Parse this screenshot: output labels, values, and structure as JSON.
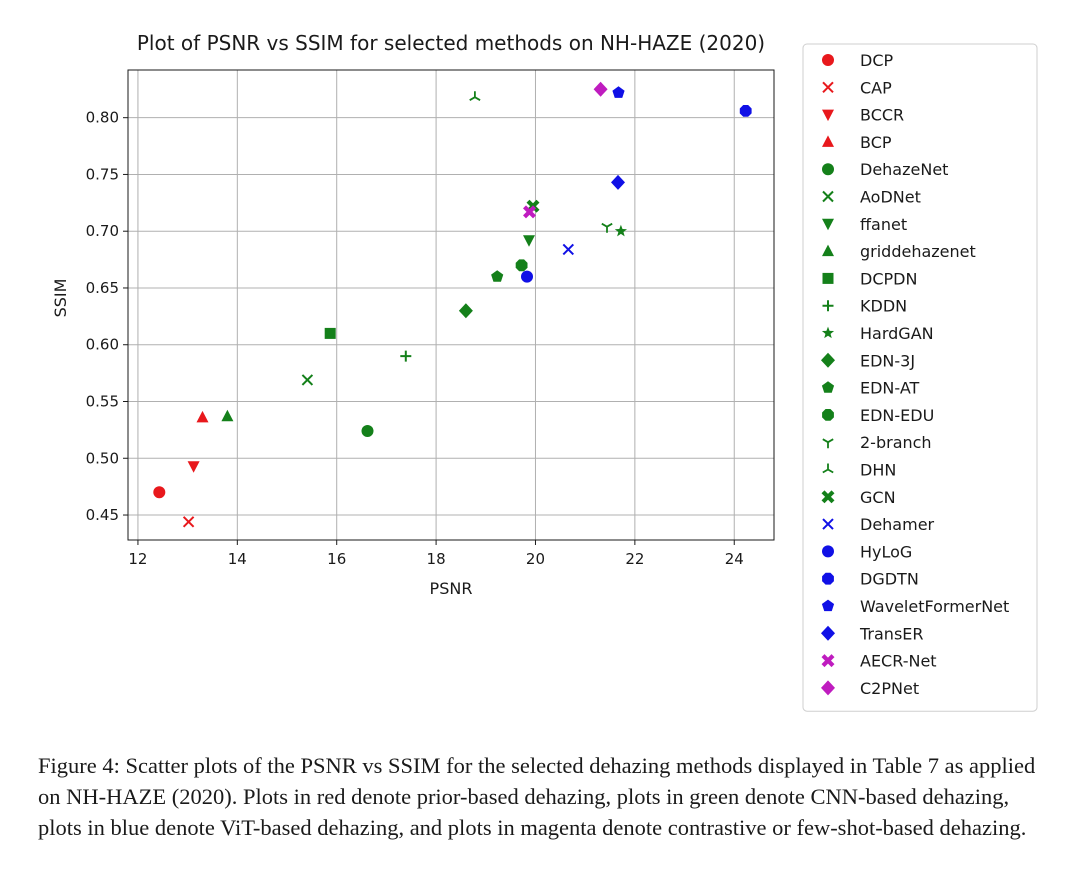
{
  "chart_data": {
    "type": "scatter",
    "title": "Plot of PSNR vs SSIM for selected methods on NH-HAZE (2020)",
    "xlabel": "PSNR",
    "ylabel": "SSIM",
    "xlim": [
      11.8,
      24.8
    ],
    "ylim": [
      0.428,
      0.842
    ],
    "xticks": [
      12,
      14,
      16,
      18,
      20,
      22,
      24
    ],
    "yticks": [
      0.45,
      0.5,
      0.55,
      0.6,
      0.65,
      0.7,
      0.75,
      0.8
    ],
    "grid": true,
    "legend_position": "outside-right",
    "colors": {
      "prior": "#e8181c",
      "cnn": "#14801a",
      "vit": "#1010e6",
      "contrastive": "#bf1cbf"
    },
    "series": [
      {
        "name": "DCP",
        "marker": "circle",
        "color": "#e8181c",
        "x": 12.43,
        "y": 0.47
      },
      {
        "name": "CAP",
        "marker": "x",
        "color": "#e8181c",
        "x": 13.02,
        "y": 0.444
      },
      {
        "name": "BCCR",
        "marker": "triangle-down",
        "color": "#e8181c",
        "x": 13.12,
        "y": 0.493
      },
      {
        "name": "BCP",
        "marker": "triangle-up",
        "color": "#e8181c",
        "x": 13.3,
        "y": 0.536
      },
      {
        "name": "DehazeNet",
        "marker": "circle",
        "color": "#14801a",
        "x": 16.62,
        "y": 0.524
      },
      {
        "name": "AoDNet",
        "marker": "x",
        "color": "#14801a",
        "x": 15.41,
        "y": 0.569
      },
      {
        "name": "ffanet",
        "marker": "triangle-down",
        "color": "#14801a",
        "x": 19.87,
        "y": 0.692
      },
      {
        "name": "griddehazenet",
        "marker": "triangle-up",
        "color": "#14801a",
        "x": 13.8,
        "y": 0.537
      },
      {
        "name": "DCPDN",
        "marker": "square",
        "color": "#14801a",
        "x": 15.87,
        "y": 0.61
      },
      {
        "name": "KDDN",
        "marker": "plus",
        "color": "#14801a",
        "x": 17.39,
        "y": 0.59
      },
      {
        "name": "HardGAN",
        "marker": "star",
        "color": "#14801a",
        "x": 21.72,
        "y": 0.7
      },
      {
        "name": "EDN-3J",
        "marker": "diamond",
        "color": "#14801a",
        "x": 18.6,
        "y": 0.63
      },
      {
        "name": "EDN-AT",
        "marker": "pentagon",
        "color": "#14801a",
        "x": 19.23,
        "y": 0.66
      },
      {
        "name": "EDN-EDU",
        "marker": "octagon",
        "color": "#14801a",
        "x": 19.72,
        "y": 0.67
      },
      {
        "name": "2-branch",
        "marker": "tri-down",
        "color": "#14801a",
        "x": 21.44,
        "y": 0.704
      },
      {
        "name": "DHN",
        "marker": "tri-up",
        "color": "#14801a",
        "x": 18.78,
        "y": 0.818
      },
      {
        "name": "GCN",
        "marker": "x-filled",
        "color": "#14801a",
        "x": 19.95,
        "y": 0.722
      },
      {
        "name": "Dehamer",
        "marker": "x",
        "color": "#1010e6",
        "x": 20.66,
        "y": 0.684
      },
      {
        "name": "HyLoG",
        "marker": "circle",
        "color": "#1010e6",
        "x": 19.83,
        "y": 0.66
      },
      {
        "name": "DGDTN",
        "marker": "octagon",
        "color": "#1010e6",
        "x": 24.23,
        "y": 0.806
      },
      {
        "name": "WaveletFormerNet",
        "marker": "pentagon",
        "color": "#1010e6",
        "x": 21.67,
        "y": 0.822
      },
      {
        "name": "TransER",
        "marker": "diamond",
        "color": "#1010e6",
        "x": 21.66,
        "y": 0.743
      },
      {
        "name": "AECR-Net",
        "marker": "x-filled",
        "color": "#bf1cbf",
        "x": 19.88,
        "y": 0.717
      },
      {
        "name": "C2PNet",
        "marker": "diamond",
        "color": "#bf1cbf",
        "x": 21.31,
        "y": 0.825
      }
    ]
  },
  "caption": "Figure 4: Scatter plots of the PSNR vs SSIM for the selected dehazing methods displayed in Table 7 as applied on NH-HAZE (2020). Plots in red denote prior-based dehazing, plots in green denote CNN-based dehazing, plots in blue denote ViT-based dehazing, and plots in magenta denote contrastive or few-shot-based dehazing."
}
